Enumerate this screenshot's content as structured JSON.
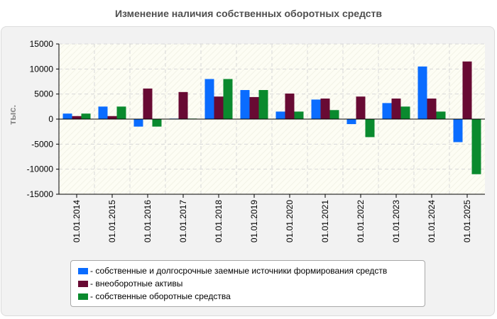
{
  "chart_data": {
    "type": "bar",
    "title": "Изменение наличия собственных оборотных средств",
    "ylabel": "тыс.",
    "xlabel": "",
    "ylim": [
      -15000,
      15000
    ],
    "yticks": [
      15000,
      10000,
      5000,
      0,
      -5000,
      -10000,
      -15000
    ],
    "grid": true,
    "legend_position": "bottom",
    "categories": [
      "01.01.2014",
      "01.01.2015",
      "01.01.2016",
      "01.01.2017",
      "01.01.2018",
      "01.01.2019",
      "01.01.2020",
      "01.01.2021",
      "01.01.2022",
      "01.01.2023",
      "01.01.2024",
      "01.01.2025"
    ],
    "series": [
      {
        "name": "собственные и долгосрочные заемные источники формирования средств",
        "color": "#0a6cff",
        "values": [
          1100,
          2500,
          -1500,
          100,
          8000,
          5800,
          1500,
          3900,
          -1000,
          3200,
          10500,
          -4600
        ]
      },
      {
        "name": "внеоборотные активы",
        "color": "#680a33",
        "values": [
          600,
          600,
          6100,
          5400,
          4500,
          4400,
          5100,
          4100,
          4500,
          4100,
          4100,
          11500
        ]
      },
      {
        "name": "собственные оборотные средства",
        "color": "#0a8a2e",
        "values": [
          1100,
          2500,
          -1500,
          100,
          8000,
          5800,
          1500,
          1800,
          -3600,
          2500,
          1500,
          -11000
        ]
      }
    ]
  }
}
